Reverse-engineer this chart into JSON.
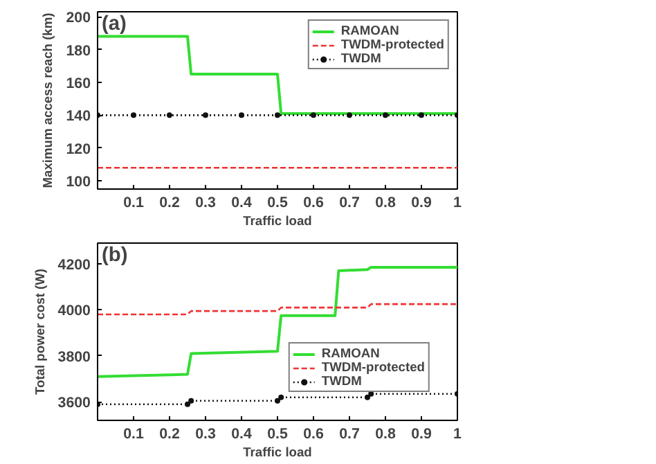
{
  "chart_data": [
    {
      "type": "line",
      "annotations": [
        "(a)"
      ],
      "xlabel": "Traffic load",
      "ylabel": "Maximum access reach (km)",
      "xlim": [
        0,
        1
      ],
      "ylim": [
        95,
        203
      ],
      "xticks": [
        0.1,
        0.2,
        0.3,
        0.4,
        0.5,
        0.6,
        0.7,
        0.8,
        0.9,
        1
      ],
      "yticks": [
        100,
        120,
        140,
        160,
        180,
        200
      ],
      "legend": "top right",
      "grid": false,
      "series": [
        {
          "name": "RAMOAN",
          "color": "#33dd33",
          "line_style": "solid",
          "marker": "none",
          "x": [
            0,
            0.25,
            0.26,
            0.5,
            0.51,
            1
          ],
          "values": [
            188,
            188,
            165,
            165,
            141,
            141
          ]
        },
        {
          "name": "TWDM-protected",
          "color": "#ee3333",
          "line_style": "dashed",
          "marker": "none",
          "x": [
            0,
            1
          ],
          "values": [
            108,
            108
          ]
        },
        {
          "name": "TWDM",
          "color": "#111111",
          "line_style": "dotted",
          "marker": "circle",
          "x": [
            0,
            0.1,
            0.2,
            0.3,
            0.4,
            0.5,
            0.6,
            0.7,
            0.8,
            0.9,
            1
          ],
          "values": [
            140,
            140,
            140,
            140,
            140,
            140,
            140,
            140,
            140,
            140,
            140
          ]
        }
      ]
    },
    {
      "type": "line",
      "annotations": [
        "(b)"
      ],
      "xlabel": "Traffic load",
      "ylabel": "Total power cost (W)",
      "xlim": [
        0,
        1
      ],
      "ylim": [
        3520,
        4290
      ],
      "xticks": [
        0.1,
        0.2,
        0.3,
        0.4,
        0.5,
        0.6,
        0.7,
        0.8,
        0.9,
        1
      ],
      "yticks": [
        3600,
        3800,
        4000,
        4200
      ],
      "legend": "right",
      "grid": false,
      "series": [
        {
          "name": "RAMOAN",
          "color": "#33dd33",
          "line_style": "solid",
          "marker": "none",
          "x": [
            0,
            0.25,
            0.26,
            0.5,
            0.51,
            0.66,
            0.67,
            0.75,
            0.76,
            1
          ],
          "values": [
            3710,
            3720,
            3810,
            3820,
            3975,
            3975,
            4170,
            4175,
            4185,
            4185
          ]
        },
        {
          "name": "TWDM-protected",
          "color": "#ee3333",
          "line_style": "dashed",
          "marker": "none",
          "x": [
            0,
            0.25,
            0.26,
            0.5,
            0.51,
            0.75,
            0.76,
            1
          ],
          "values": [
            3980,
            3980,
            3995,
            3995,
            4010,
            4010,
            4025,
            4025
          ]
        },
        {
          "name": "TWDM",
          "color": "#111111",
          "line_style": "dotted",
          "marker": "circle",
          "x": [
            0,
            0.25,
            0.26,
            0.5,
            0.51,
            0.75,
            0.76,
            1
          ],
          "values": [
            3590,
            3590,
            3605,
            3605,
            3620,
            3620,
            3635,
            3635
          ]
        }
      ]
    }
  ]
}
